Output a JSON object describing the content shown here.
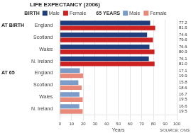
{
  "chart_data": {
    "type": "bar",
    "orientation": "horizontal",
    "title": "LIFE EXPECTANCY (2006)",
    "xlabel": "Years",
    "source": "SOURCE: ONS",
    "categories": [
      "England",
      "Scotland",
      "Wales",
      "N. Ireland",
      "England",
      "Scotland",
      "Wales",
      "N. Ireland"
    ],
    "annotations": [
      {
        "text": "AT BIRTH",
        "category_index": 0
      },
      {
        "text": "AT 65",
        "category_index": 4
      }
    ],
    "series": [
      {
        "name": "Male",
        "group": "BIRTH",
        "color": "#1f3d7a",
        "values": [
          77.2,
          74.6,
          76.6,
          76.1,
          null,
          null,
          null,
          null
        ],
        "value_labels": [
          "77.2",
          "74.6",
          "76.6",
          "76.1",
          null,
          null,
          null,
          null
        ]
      },
      {
        "name": "Female",
        "group": "BIRTH",
        "color": "#cc2222",
        "values": [
          81.5,
          79.6,
          80.9,
          81.0,
          null,
          null,
          null,
          null
        ],
        "value_labels": [
          "81.5",
          "79.6",
          "80.9",
          "81.0",
          null,
          null,
          null,
          null
        ]
      },
      {
        "name": "Male",
        "group": "65 YEARS",
        "color": "#7b9cc9",
        "values": [
          null,
          null,
          null,
          null,
          17.1,
          15.8,
          16.7,
          16.6
        ],
        "value_labels": [
          null,
          null,
          null,
          null,
          "17.1",
          "15.8",
          "16.7",
          "16.6"
        ]
      },
      {
        "name": "Female",
        "group": "65 YEARS",
        "color": "#e8897a",
        "values": [
          null,
          null,
          null,
          null,
          19.9,
          18.6,
          19.5,
          19.5
        ],
        "value_labels": [
          null,
          null,
          null,
          null,
          "19.9",
          "18.6",
          "19.5",
          "19.5"
        ]
      }
    ],
    "xlim": [
      0,
      100
    ],
    "xticks": [
      0,
      10,
      20,
      30,
      40,
      50,
      60,
      70,
      80,
      90,
      100
    ],
    "grid": true,
    "data_labels": true
  }
}
